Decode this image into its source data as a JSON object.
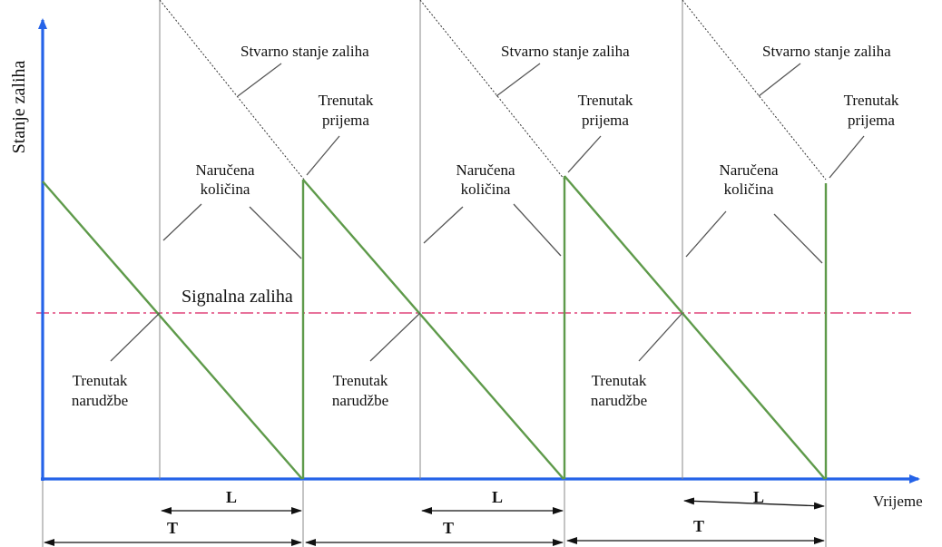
{
  "axes": {
    "y_label": "Stanje zaliha",
    "x_label": "Vrijeme",
    "axis_color": "#2563e8"
  },
  "signal_line": {
    "label": "Signalna zaliha",
    "color": "#e0457a"
  },
  "colors": {
    "stock_line": "#5e9a4a",
    "guide_line": "#8a8a8a"
  },
  "cycles": [
    {
      "actual_stock_label": "Stvarno stanje zaliha",
      "receipt_label": [
        "Trenutak",
        "prijema"
      ],
      "ordered_qty_label": [
        "Naručena",
        "količina"
      ],
      "order_label": [
        "Trenutak",
        "narudžbe"
      ],
      "lead_time_label": "L",
      "period_label": "T"
    },
    {
      "actual_stock_label": "Stvarno stanje zaliha",
      "receipt_label": [
        "Trenutak",
        "prijema"
      ],
      "ordered_qty_label": [
        "Naručena",
        "količina"
      ],
      "order_label": [
        "Trenutak",
        "narudžbe"
      ],
      "lead_time_label": "L",
      "period_label": "T"
    },
    {
      "actual_stock_label": "Stvarno stanje zaliha",
      "receipt_label": [
        "Trenutak",
        "prijema"
      ],
      "ordered_qty_label": [
        "Naručena",
        "količina"
      ],
      "order_label": [
        "Trenutak",
        "narudžbe"
      ],
      "lead_time_label": "L",
      "period_label": "T"
    }
  ]
}
